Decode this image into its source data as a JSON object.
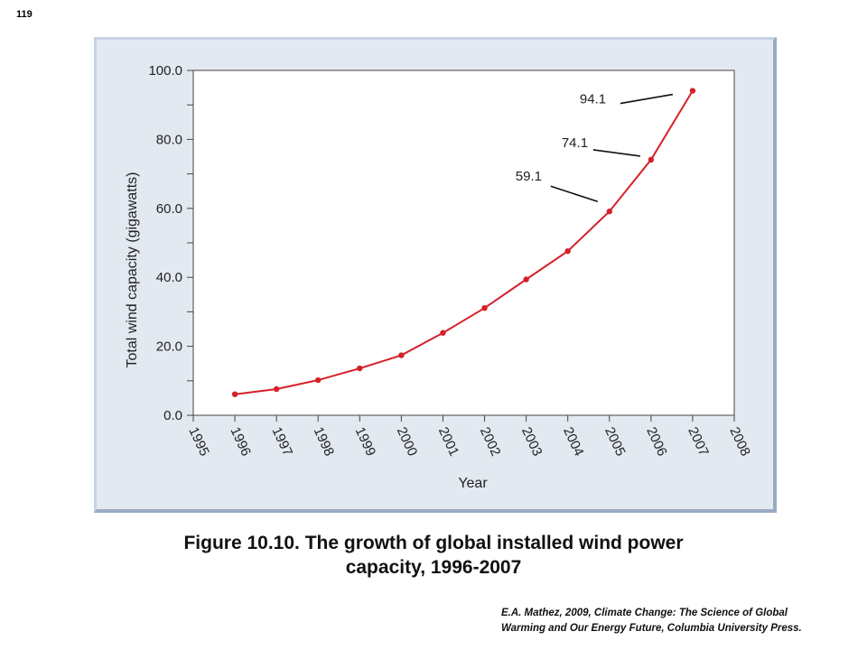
{
  "page_number": "119",
  "caption": {
    "line1": "Figure 10.10.  The growth of global installed wind power",
    "line2": "capacity, 1996-2007"
  },
  "source": {
    "line1": "E.A. Mathez, 2009, Climate Change: The Science of Global",
    "line2": "Warming and Our Energy Future, Columbia University Press."
  },
  "chart_data": {
    "type": "line",
    "xlabel": "Year",
    "ylabel": "Total wind capacity (gigawatts)",
    "xlim": [
      1995,
      2008
    ],
    "ylim": [
      0,
      100
    ],
    "x_ticks": [
      "1995",
      "1996",
      "1997",
      "1998",
      "1999",
      "2000",
      "2001",
      "2002",
      "2003",
      "2004",
      "2005",
      "2006",
      "2007",
      "2008"
    ],
    "y_ticks": [
      "0.0",
      "20.0",
      "40.0",
      "60.0",
      "80.0",
      "100.0"
    ],
    "y_minor_step": 10,
    "grid": false,
    "line_color": "#d6202a",
    "series": [
      {
        "x": [
          1996,
          1997,
          1998,
          1999,
          2000,
          2001,
          2002,
          2003,
          2004,
          2005,
          2006,
          2007
        ],
        "values": [
          6.1,
          7.6,
          10.2,
          13.6,
          17.4,
          23.9,
          31.1,
          39.4,
          47.6,
          59.1,
          74.1,
          94.1
        ]
      }
    ],
    "annotations": [
      {
        "text": "94.1",
        "x": 2007,
        "y": 94.1
      },
      {
        "text": "74.1",
        "x": 2006,
        "y": 74.1
      },
      {
        "text": "59.1",
        "x": 2005,
        "y": 59.1
      }
    ]
  }
}
